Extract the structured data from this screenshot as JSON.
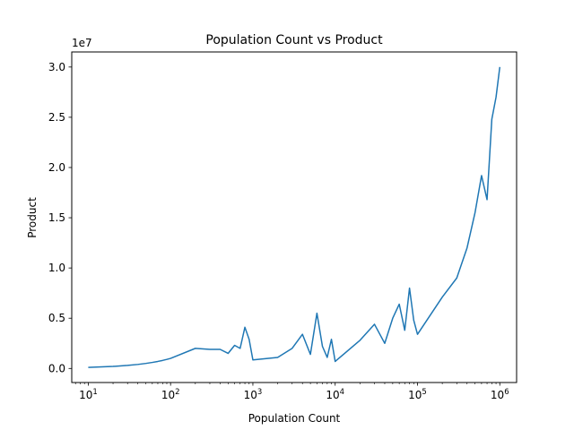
{
  "chart_data": {
    "type": "line",
    "title": "Population Count vs Product",
    "xlabel": "Population Count",
    "ylabel": "Product",
    "x_scale": "log",
    "y_offset_label": "1e7",
    "xlim": [
      6.3,
      1600000
    ],
    "ylim": [
      -1400000,
      31500000
    ],
    "x_ticks": [
      {
        "value": 10,
        "base": "10",
        "exp": "1"
      },
      {
        "value": 100,
        "base": "10",
        "exp": "2"
      },
      {
        "value": 1000,
        "base": "10",
        "exp": "3"
      },
      {
        "value": 10000,
        "base": "10",
        "exp": "4"
      },
      {
        "value": 100000,
        "base": "10",
        "exp": "5"
      },
      {
        "value": 1000000,
        "base": "10",
        "exp": "6"
      }
    ],
    "y_ticks": [
      {
        "value": 0,
        "label": "0.0"
      },
      {
        "value": 5000000,
        "label": "0.5"
      },
      {
        "value": 10000000,
        "label": "1.0"
      },
      {
        "value": 15000000,
        "label": "1.5"
      },
      {
        "value": 20000000,
        "label": "2.0"
      },
      {
        "value": 25000000,
        "label": "2.5"
      },
      {
        "value": 30000000,
        "label": "3.0"
      }
    ],
    "grid": false,
    "series": [
      {
        "color": "#1f77b4",
        "x": [
          10,
          20,
          30,
          40,
          50,
          60,
          70,
          80,
          90,
          100,
          200,
          300,
          400,
          500,
          600,
          700,
          800,
          900,
          1000,
          2000,
          3000,
          4000,
          5000,
          6000,
          7000,
          8000,
          9000,
          10000,
          20000,
          30000,
          40000,
          50000,
          60000,
          70000,
          80000,
          90000,
          100000,
          200000,
          300000,
          400000,
          500000,
          600000,
          700000,
          800000,
          900000,
          1000000
        ],
        "y": [
          100000,
          200000,
          300000,
          400000,
          500000,
          600000,
          700000,
          800000,
          900000,
          1000000,
          2000000,
          1900000,
          1900000,
          1500000,
          2300000,
          2000000,
          4100000,
          2900000,
          850000,
          1100000,
          2000000,
          3400000,
          1400000,
          5500000,
          2200000,
          1100000,
          2900000,
          700000,
          2800000,
          4400000,
          2500000,
          5000000,
          6400000,
          3800000,
          8000000,
          4800000,
          3400000,
          7100000,
          9000000,
          12000000,
          15500000,
          19200000,
          16800000,
          24800000,
          27000000,
          30000000
        ]
      }
    ]
  }
}
